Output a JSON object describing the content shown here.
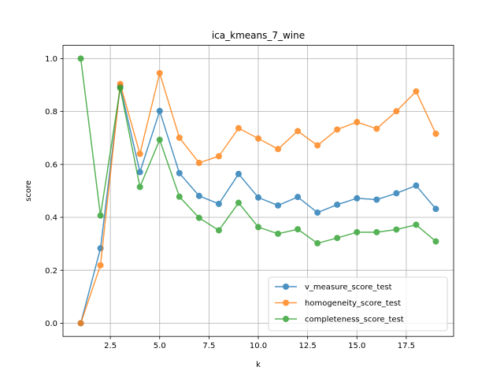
{
  "chart_data": {
    "type": "line",
    "title": "ica_kmeans_7_wine",
    "xlabel": "k",
    "ylabel": "score",
    "xlim": [
      0.1,
      19.9
    ],
    "ylim": [
      -0.05,
      1.05
    ],
    "xticks": [
      2.5,
      5.0,
      7.5,
      10.0,
      12.5,
      15.0,
      17.5
    ],
    "xtick_labels": [
      "2.5",
      "5.0",
      "7.5",
      "10.0",
      "12.5",
      "15.0",
      "17.5"
    ],
    "yticks": [
      0.0,
      0.2,
      0.4,
      0.6,
      0.8,
      1.0
    ],
    "ytick_labels": [
      "0.0",
      "0.2",
      "0.4",
      "0.6",
      "0.8",
      "1.0"
    ],
    "grid": true,
    "legend_position": "lower-right",
    "x": [
      1,
      2,
      3,
      4,
      5,
      6,
      7,
      8,
      9,
      10,
      11,
      12,
      13,
      14,
      15,
      16,
      17,
      18,
      19
    ],
    "series": [
      {
        "name": "v_measure_score_test",
        "color": "#1f77b4",
        "values": [
          0.0,
          0.283,
          0.895,
          0.571,
          0.802,
          0.567,
          0.481,
          0.451,
          0.564,
          0.475,
          0.445,
          0.477,
          0.418,
          0.448,
          0.472,
          0.467,
          0.491,
          0.52,
          0.432
        ]
      },
      {
        "name": "homogeneity_score_test",
        "color": "#ff7f0e",
        "values": [
          0.0,
          0.219,
          0.904,
          0.64,
          0.945,
          0.701,
          0.606,
          0.631,
          0.737,
          0.698,
          0.658,
          0.726,
          0.672,
          0.732,
          0.76,
          0.735,
          0.801,
          0.876,
          0.716
        ]
      },
      {
        "name": "completeness_score_test",
        "color": "#2ca02c",
        "values": [
          1.0,
          0.407,
          0.889,
          0.515,
          0.693,
          0.478,
          0.398,
          0.351,
          0.455,
          0.363,
          0.338,
          0.355,
          0.302,
          0.322,
          0.344,
          0.344,
          0.354,
          0.372,
          0.309
        ]
      }
    ]
  }
}
